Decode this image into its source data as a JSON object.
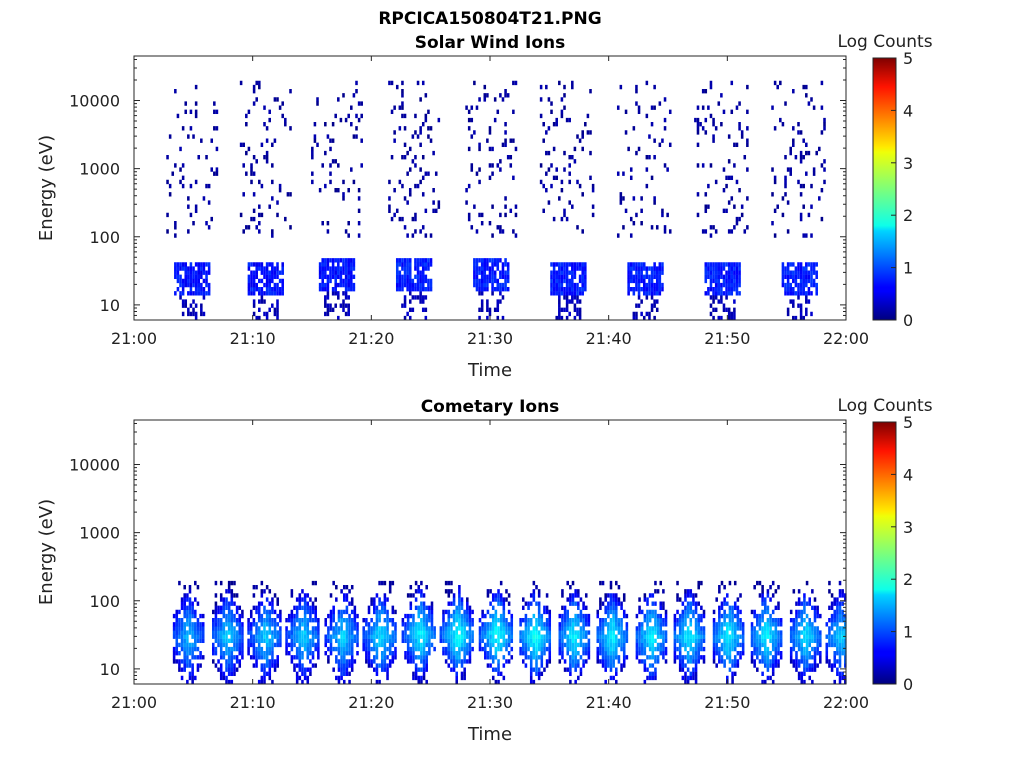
{
  "figure_title": "RPCICA150804T21.PNG",
  "colorbar": {
    "label": "Log Counts",
    "ticks": [
      "0",
      "1",
      "2",
      "3",
      "4",
      "5"
    ],
    "min": 0,
    "max": 5
  },
  "chart_data": [
    {
      "type": "heatmap",
      "title": "Solar Wind Ions",
      "xlabel": "Time",
      "ylabel": "Energy (eV)",
      "x_tick_labels": [
        "21:00",
        "21:10",
        "21:20",
        "21:30",
        "21:40",
        "21:50",
        "22:00"
      ],
      "y_tick_labels": [
        "10",
        "100",
        "1000",
        "10000"
      ],
      "y_scale": "log",
      "xlim": [
        "21:00",
        "22:00"
      ],
      "ylim_eV": [
        6,
        45000
      ],
      "colorbar_range": [
        0,
        5
      ],
      "bursts": [
        {
          "center_min": 4.8,
          "core_log_counts": 0.7,
          "peak_eV": 30
        },
        {
          "center_min": 11.0,
          "core_log_counts": 0.7,
          "peak_eV": 30
        },
        {
          "center_min": 17.0,
          "core_log_counts": 0.7,
          "peak_eV": 35
        },
        {
          "center_min": 23.5,
          "core_log_counts": 0.75,
          "peak_eV": 35
        },
        {
          "center_min": 30.0,
          "core_log_counts": 0.75,
          "peak_eV": 35
        },
        {
          "center_min": 36.5,
          "core_log_counts": 0.75,
          "peak_eV": 30
        },
        {
          "center_min": 43.0,
          "core_log_counts": 0.75,
          "peak_eV": 30
        },
        {
          "center_min": 49.5,
          "core_log_counts": 0.75,
          "peak_eV": 30
        },
        {
          "center_min": 56.0,
          "core_log_counts": 0.75,
          "peak_eV": 30
        }
      ]
    },
    {
      "type": "heatmap",
      "title": "Cometary Ions",
      "xlabel": "Time",
      "ylabel": "Energy (eV)",
      "x_tick_labels": [
        "21:00",
        "21:10",
        "21:20",
        "21:30",
        "21:40",
        "21:50",
        "22:00"
      ],
      "y_tick_labels": [
        "10",
        "100",
        "1000",
        "10000"
      ],
      "y_scale": "log",
      "xlim": [
        "21:00",
        "22:00"
      ],
      "ylim_eV": [
        6,
        45000
      ],
      "colorbar_range": [
        0,
        5
      ],
      "bursts": [
        {
          "center_min": 4.5,
          "core_log_counts": 1.6,
          "peak_eV": 30
        },
        {
          "center_min": 7.8,
          "core_log_counts": 1.7,
          "peak_eV": 30
        },
        {
          "center_min": 11.0,
          "core_log_counts": 1.7,
          "peak_eV": 30
        },
        {
          "center_min": 14.2,
          "core_log_counts": 1.7,
          "peak_eV": 30
        },
        {
          "center_min": 17.5,
          "core_log_counts": 1.7,
          "peak_eV": 30
        },
        {
          "center_min": 20.7,
          "core_log_counts": 1.8,
          "peak_eV": 30
        },
        {
          "center_min": 24.0,
          "core_log_counts": 1.9,
          "peak_eV": 32
        },
        {
          "center_min": 27.2,
          "core_log_counts": 2.0,
          "peak_eV": 32
        },
        {
          "center_min": 30.5,
          "core_log_counts": 2.0,
          "peak_eV": 32
        },
        {
          "center_min": 33.7,
          "core_log_counts": 2.0,
          "peak_eV": 30
        },
        {
          "center_min": 37.0,
          "core_log_counts": 1.9,
          "peak_eV": 30
        },
        {
          "center_min": 40.2,
          "core_log_counts": 1.9,
          "peak_eV": 30
        },
        {
          "center_min": 43.5,
          "core_log_counts": 1.9,
          "peak_eV": 30
        },
        {
          "center_min": 46.7,
          "core_log_counts": 1.9,
          "peak_eV": 30
        },
        {
          "center_min": 50.0,
          "core_log_counts": 1.9,
          "peak_eV": 30
        },
        {
          "center_min": 53.2,
          "core_log_counts": 1.9,
          "peak_eV": 30
        },
        {
          "center_min": 56.5,
          "core_log_counts": 1.8,
          "peak_eV": 30
        },
        {
          "center_min": 59.5,
          "core_log_counts": 1.7,
          "peak_eV": 30
        }
      ]
    }
  ]
}
